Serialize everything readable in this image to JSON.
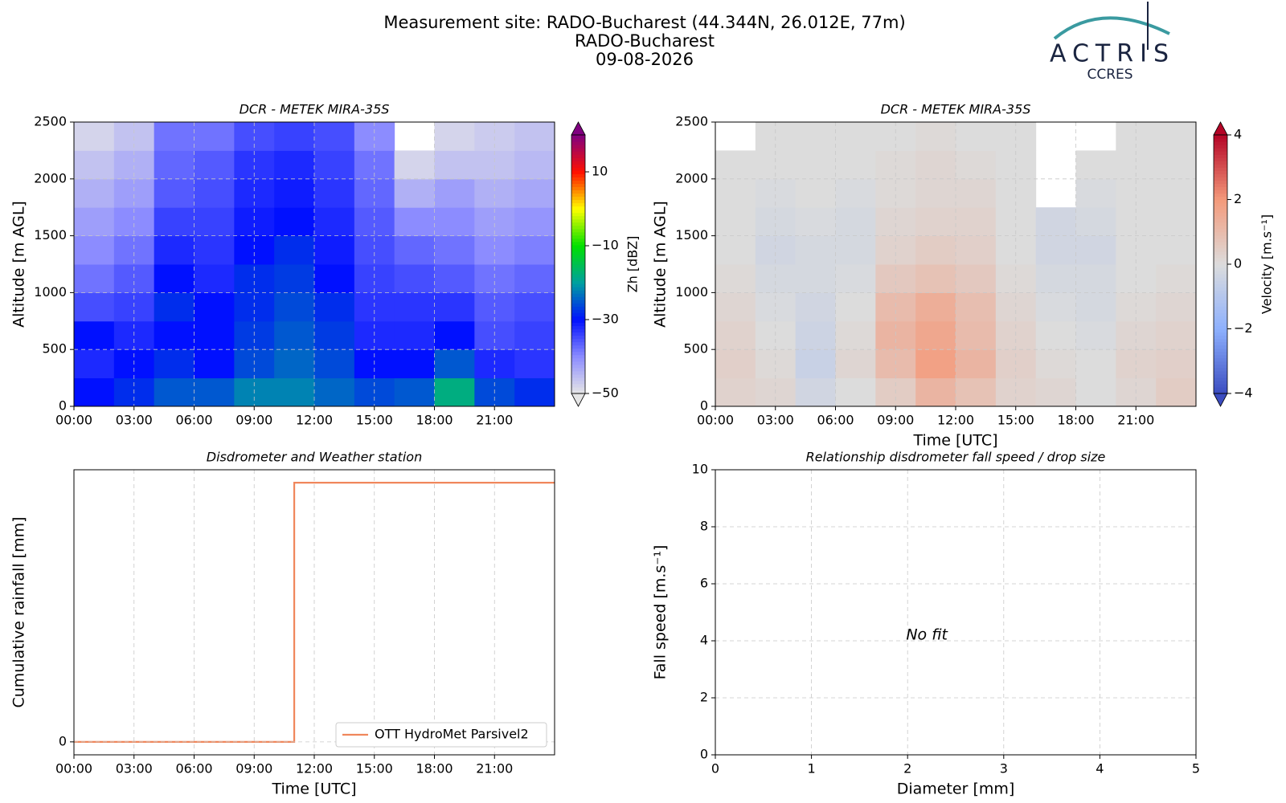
{
  "header": {
    "title": "Measurement site: RADO-Bucharest (44.344N, 26.012E, 77m)",
    "subtitle": "RADO-Bucharest",
    "date": "09-08-2026",
    "logo": "ACTRIS",
    "logo_subtitle": "CCRES"
  },
  "chart_data": [
    {
      "type": "heatmap",
      "title": "DCR - METEK MIRA-35S",
      "ylabel": "Altitude [m AGL]",
      "xlim": [
        0,
        24
      ],
      "xticks": [
        {
          "value": 0,
          "label": "00:00"
        },
        {
          "value": 3,
          "label": "03:00"
        },
        {
          "value": 6,
          "label": "06:00"
        },
        {
          "value": 9,
          "label": "09:00"
        },
        {
          "value": 12,
          "label": "12:00"
        },
        {
          "value": 15,
          "label": "15:00"
        },
        {
          "value": 18,
          "label": "18:00"
        },
        {
          "value": 21,
          "label": "21:00"
        }
      ],
      "ylim": [
        0,
        2500
      ],
      "yticks": [
        0,
        500,
        1000,
        1500,
        2000,
        2500
      ],
      "grid": true,
      "x": [
        0,
        2,
        4,
        6,
        8,
        10,
        12,
        14,
        16,
        18,
        20,
        22,
        24
      ],
      "y": [
        0,
        250,
        500,
        750,
        1000,
        1250,
        1500,
        1750,
        2000,
        2250,
        2500
      ],
      "values": [
        [
          -30,
          -28,
          -25,
          -25,
          -22,
          -22,
          -24,
          -26,
          -25,
          -18,
          -26,
          -28
        ],
        [
          -32,
          -30,
          -28,
          -30,
          -26,
          -24,
          -26,
          -30,
          -30,
          -25,
          -32,
          -33
        ],
        [
          -30,
          -32,
          -30,
          -30,
          -27,
          -25,
          -27,
          -32,
          -32,
          -30,
          -35,
          -34
        ],
        [
          -35,
          -34,
          -28,
          -30,
          -28,
          -26,
          -28,
          -33,
          -33,
          -33,
          -36,
          -35
        ],
        [
          -38,
          -36,
          -30,
          -32,
          -28,
          -27,
          -30,
          -34,
          -35,
          -36,
          -38,
          -37
        ],
        [
          -40,
          -38,
          -32,
          -33,
          -30,
          -28,
          -31,
          -35,
          -37,
          -38,
          -40,
          -39
        ],
        [
          -42,
          -40,
          -34,
          -34,
          -31,
          -30,
          -32,
          -36,
          -40,
          -40,
          -42,
          -41
        ],
        [
          -44,
          -42,
          -36,
          -35,
          -32,
          -31,
          -33,
          -37,
          -44,
          -42,
          -44,
          -43
        ],
        [
          -46,
          -44,
          -37,
          -36,
          -33,
          -32,
          -34,
          -38,
          -48,
          -46,
          -46,
          -45
        ],
        [
          -48,
          -46,
          -38,
          -38,
          -35,
          -34,
          -35,
          -40,
          null,
          -48,
          -47,
          -46
        ]
      ],
      "colorbar": {
        "label": "Zh [dBZ]",
        "lim": [
          -50,
          20
        ],
        "ticks": [
          {
            "value": -50,
            "label": "−50"
          },
          {
            "value": -30,
            "label": "−30"
          },
          {
            "value": -10,
            "label": "−10"
          },
          10
        ],
        "colors": [
          "#e6e6e6",
          "#8c8cff",
          "#0010ff",
          "#00a0a0",
          "#00e000",
          "#ffff00",
          "#ff1000",
          "#800080"
        ]
      }
    },
    {
      "type": "heatmap",
      "title": "DCR - METEK MIRA-35S",
      "ylabel": "Altitude [m AGL]",
      "xlabel": "Time [UTC]",
      "xlim": [
        0,
        24
      ],
      "xticks": [
        {
          "value": 0,
          "label": "00:00"
        },
        {
          "value": 3,
          "label": "03:00"
        },
        {
          "value": 6,
          "label": "06:00"
        },
        {
          "value": 9,
          "label": "09:00"
        },
        {
          "value": 12,
          "label": "12:00"
        },
        {
          "value": 15,
          "label": "15:00"
        },
        {
          "value": 18,
          "label": "18:00"
        },
        {
          "value": 21,
          "label": "21:00"
        }
      ],
      "ylim": [
        0,
        2500
      ],
      "yticks": [
        0,
        500,
        1000,
        1500,
        2000,
        2500
      ],
      "grid": true,
      "x": [
        0,
        2,
        4,
        6,
        8,
        10,
        12,
        14,
        16,
        18,
        20,
        22,
        24
      ],
      "y": [
        0,
        250,
        500,
        750,
        1000,
        1250,
        1500,
        1750,
        2000,
        2250,
        2500
      ],
      "values": [
        [
          0.3,
          0.2,
          -0.3,
          0,
          0.5,
          1.2,
          0.8,
          0.3,
          0.2,
          0,
          0.2,
          0.5
        ],
        [
          0.4,
          0.1,
          -0.5,
          0.2,
          1.0,
          1.8,
          1.2,
          0.4,
          0.1,
          0,
          0.3,
          0.4
        ],
        [
          0.3,
          0,
          -0.4,
          0.1,
          1.2,
          1.6,
          1.0,
          0.3,
          0,
          -0.1,
          0.2,
          0.3
        ],
        [
          0.2,
          -0.1,
          -0.3,
          0,
          1.0,
          1.4,
          0.9,
          0.2,
          -0.1,
          -0.2,
          0.1,
          0.2
        ],
        [
          0.1,
          -0.2,
          -0.2,
          -0.1,
          0.6,
          0.8,
          0.6,
          0.1,
          -0.2,
          -0.2,
          0,
          0.1
        ],
        [
          0,
          -0.3,
          -0.2,
          -0.2,
          0.3,
          0.5,
          0.4,
          0,
          -0.3,
          -0.3,
          0,
          0
        ],
        [
          0,
          -0.2,
          -0.1,
          -0.2,
          0.2,
          0.3,
          0.3,
          0,
          -0.3,
          -0.2,
          0,
          0
        ],
        [
          0,
          -0.1,
          0,
          -0.1,
          0.1,
          0.2,
          0.2,
          0,
          null,
          -0.1,
          0,
          0
        ],
        [
          0,
          0,
          0,
          0,
          0.1,
          0.2,
          0.1,
          0,
          null,
          0,
          0,
          0
        ],
        [
          null,
          0,
          0,
          0,
          0,
          0.1,
          0,
          0,
          null,
          null,
          0,
          0
        ]
      ],
      "colorbar": {
        "label": "Velocity [m.s⁻¹]",
        "lim": [
          -4,
          4
        ],
        "ticks": [
          {
            "value": -4,
            "label": "−4"
          },
          {
            "value": -2,
            "label": "−2"
          },
          0,
          2,
          4
        ],
        "colors": [
          "#3b4cc0",
          "#8db0fe",
          "#dcdcdc",
          "#f49a7b",
          "#b40426"
        ]
      }
    },
    {
      "type": "line",
      "title": "Disdrometer and Weather station",
      "xlabel": "Time [UTC]",
      "ylabel": "Cumulative rainfall [mm]",
      "xlim": [
        0,
        24
      ],
      "xticks": [
        {
          "value": 0,
          "label": "00:00"
        },
        {
          "value": 3,
          "label": "03:00"
        },
        {
          "value": 6,
          "label": "06:00"
        },
        {
          "value": 9,
          "label": "09:00"
        },
        {
          "value": 12,
          "label": "12:00"
        },
        {
          "value": 15,
          "label": "15:00"
        },
        {
          "value": 18,
          "label": "18:00"
        },
        {
          "value": 21,
          "label": "21:00"
        }
      ],
      "ylim": [
        -0.01,
        0.21
      ],
      "yticks": [
        0
      ],
      "grid": true,
      "legend": "lower-right",
      "x": [
        0,
        11,
        11,
        24
      ],
      "series": [
        {
          "name": "OTT HydroMet Parsivel2",
          "color": "#f0875c",
          "values": [
            0,
            0,
            0.2,
            0.2
          ]
        }
      ]
    },
    {
      "type": "scatter",
      "title": "Relationship disdrometer fall speed / drop size",
      "xlabel": "Diameter [mm]",
      "ylabel": "Fall speed [m.s⁻¹]",
      "xlim": [
        0,
        5
      ],
      "xticks": [
        0,
        1,
        2,
        3,
        4,
        5
      ],
      "ylim": [
        0,
        10
      ],
      "yticks": [
        0,
        2,
        4,
        6,
        8,
        10
      ],
      "grid": true,
      "annotation": "No fit",
      "series": []
    }
  ]
}
